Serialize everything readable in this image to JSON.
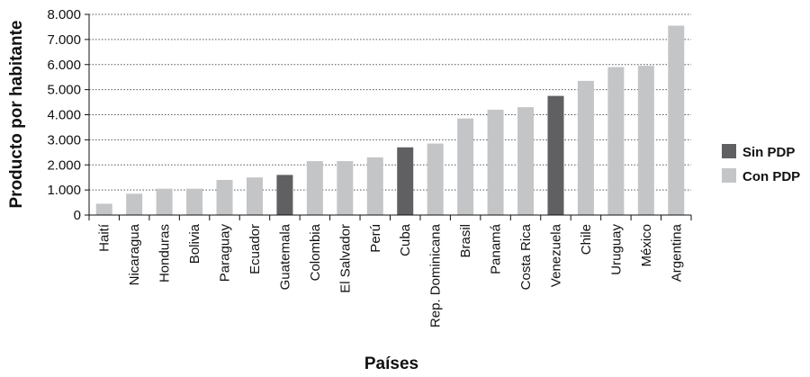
{
  "chart_data": {
    "type": "bar",
    "xlabel": "Países",
    "ylabel": "Producto por habitante",
    "ylim": [
      0,
      8000
    ],
    "yticks": [
      0,
      1000,
      2000,
      3000,
      4000,
      5000,
      6000,
      7000,
      8000
    ],
    "ytick_labels": [
      "0",
      "1.000",
      "2.000",
      "3.000",
      "4.000",
      "5.000",
      "6.000",
      "7.000",
      "8.000"
    ],
    "grid": true,
    "legend_position": "right",
    "categories": [
      "Haití",
      "Nicaragua",
      "Honduras",
      "Bolivia",
      "Paraguay",
      "Ecuador",
      "Guatemala",
      "Colombia",
      "El Salvador",
      "Perú",
      "Cuba",
      "Rep. Dominicana",
      "Brasil",
      "Panamá",
      "Costa Rica",
      "Venezuela",
      "Chile",
      "Uruguay",
      "México",
      "Argentina"
    ],
    "values": [
      450,
      850,
      1050,
      1050,
      1400,
      1500,
      1600,
      2150,
      2150,
      2300,
      2700,
      2850,
      3850,
      4200,
      4300,
      4750,
      5350,
      5900,
      5950,
      7550
    ],
    "groups": [
      "Con PDP",
      "Con PDP",
      "Con PDP",
      "Con PDP",
      "Con PDP",
      "Con PDP",
      "Sin PDP",
      "Con PDP",
      "Con PDP",
      "Con PDP",
      "Sin PDP",
      "Con PDP",
      "Con PDP",
      "Con PDP",
      "Con PDP",
      "Sin PDP",
      "Con PDP",
      "Con PDP",
      "Con PDP",
      "Con PDP"
    ],
    "legend": [
      {
        "name": "Sin PDP",
        "color": "#606062"
      },
      {
        "name": "Con PDP",
        "color": "#c4c5c7"
      }
    ]
  }
}
